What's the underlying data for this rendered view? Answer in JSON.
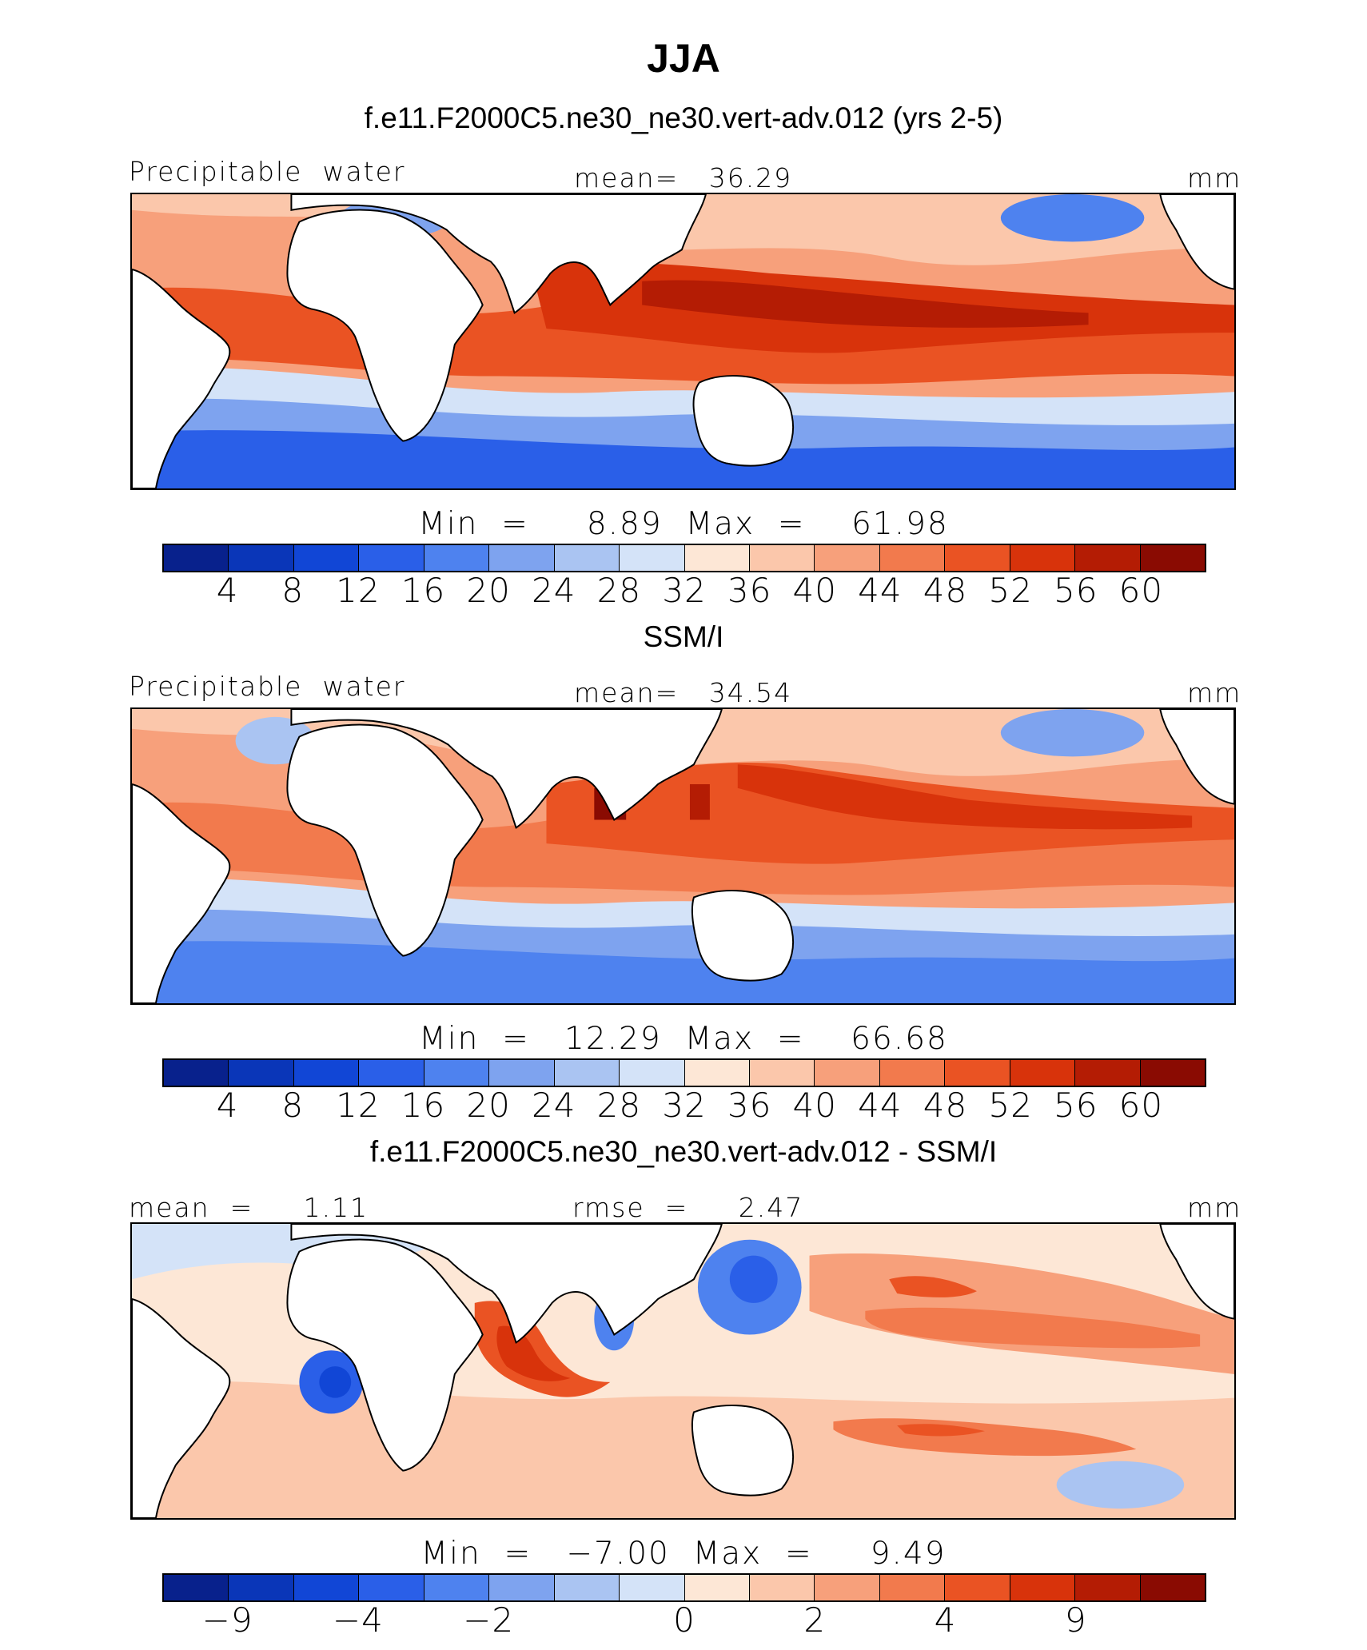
{
  "title": "JJA",
  "palette": [
    "#08218c",
    "#0a36b8",
    "#1146d6",
    "#2a5fe8",
    "#4e82ef",
    "#7ea3ef",
    "#aac4f2",
    "#d4e3f8",
    "#fde7d6",
    "#fbc7ab",
    "#f7a07b",
    "#f27a4d",
    "#ea5323",
    "#d8330b",
    "#b41c04",
    "#8a0b02"
  ],
  "land_color": "#ffffff",
  "panels": [
    {
      "title": "f.e11.F2000C5.ne30_ne30.vert-adv.012 (yrs 2-5)",
      "top_left": "Precipitable  water",
      "top_center": "mean=   36.29",
      "top_right": "mm",
      "minmax": "Min  =     8.89  Max  =    61.98",
      "colorbar_ticks": [
        "4",
        "8",
        "12",
        "16",
        "20",
        "24",
        "28",
        "32",
        "36",
        "40",
        "44",
        "48",
        "52",
        "56",
        "60"
      ]
    },
    {
      "title": "SSM/I",
      "top_left": "Precipitable  water",
      "top_center": "mean=   34.54",
      "top_right": "mm",
      "minmax": "Min  =   12.29  Max  =    66.68",
      "colorbar_ticks": [
        "4",
        "8",
        "12",
        "16",
        "20",
        "24",
        "28",
        "32",
        "36",
        "40",
        "44",
        "48",
        "52",
        "56",
        "60"
      ]
    },
    {
      "title": "f.e11.F2000C5.ne30_ne30.vert-adv.012 - SSM/I",
      "top_left": "mean  =     1.11",
      "top_center": "rmse  =     2.47",
      "top_right": "mm",
      "minmax": "Min  =   −7.00  Max  =     9.49",
      "colorbar_ticks": [
        "−9",
        "−4",
        "−2",
        "0",
        "2",
        "4",
        "9"
      ]
    }
  ]
}
